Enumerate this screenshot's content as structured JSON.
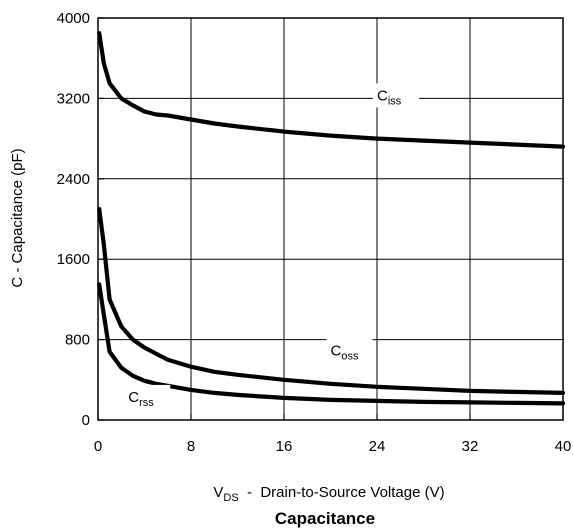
{
  "chart_data": {
    "type": "line",
    "title": "Capacitance",
    "xlabel": {
      "main": "V",
      "sub": "DS",
      "rest": "  -  Drain-to-Source Voltage (V)"
    },
    "ylabel": "C  -  Capacitance (pF)",
    "xlim": [
      0,
      40
    ],
    "ylim": [
      0,
      4000
    ],
    "xticks": [
      0,
      8,
      16,
      24,
      32,
      40
    ],
    "yticks": [
      0,
      800,
      1600,
      2400,
      3200,
      4000
    ],
    "xtick_labels": [
      "0",
      "8",
      "16",
      "24",
      "32",
      "40"
    ],
    "ytick_labels": [
      "0",
      "800",
      "1600",
      "2400",
      "3200",
      "4000"
    ],
    "grid": true,
    "series": [
      {
        "name": "Ciss",
        "label_main": "C",
        "label_sub": "iss",
        "color": "#000000",
        "x": [
          0.1,
          0.5,
          1,
          2,
          3,
          4,
          5,
          6,
          7,
          8,
          10,
          12,
          16,
          20,
          24,
          28,
          32,
          36,
          40
        ],
        "y": [
          3850,
          3550,
          3350,
          3200,
          3130,
          3070,
          3040,
          3030,
          3010,
          2990,
          2950,
          2920,
          2870,
          2830,
          2800,
          2780,
          2760,
          2740,
          2720
        ]
      },
      {
        "name": "Coss",
        "label_main": "C",
        "label_sub": "oss",
        "color": "#000000",
        "x": [
          0.1,
          0.5,
          1,
          2,
          3,
          4,
          5,
          6,
          8,
          10,
          12,
          16,
          20,
          24,
          28,
          32,
          36,
          40
        ],
        "y": [
          2100,
          1750,
          1200,
          930,
          800,
          720,
          660,
          600,
          530,
          480,
          450,
          400,
          360,
          330,
          310,
          290,
          280,
          270
        ]
      },
      {
        "name": "Crss",
        "label_main": "C",
        "label_sub": "rss",
        "color": "#000000",
        "x": [
          0.1,
          0.5,
          1,
          2,
          3,
          4,
          5,
          6,
          8,
          10,
          12,
          16,
          20,
          24,
          28,
          32,
          36,
          40
        ],
        "y": [
          1350,
          1050,
          680,
          520,
          440,
          390,
          360,
          340,
          300,
          270,
          250,
          220,
          200,
          190,
          180,
          175,
          170,
          165
        ]
      }
    ]
  }
}
